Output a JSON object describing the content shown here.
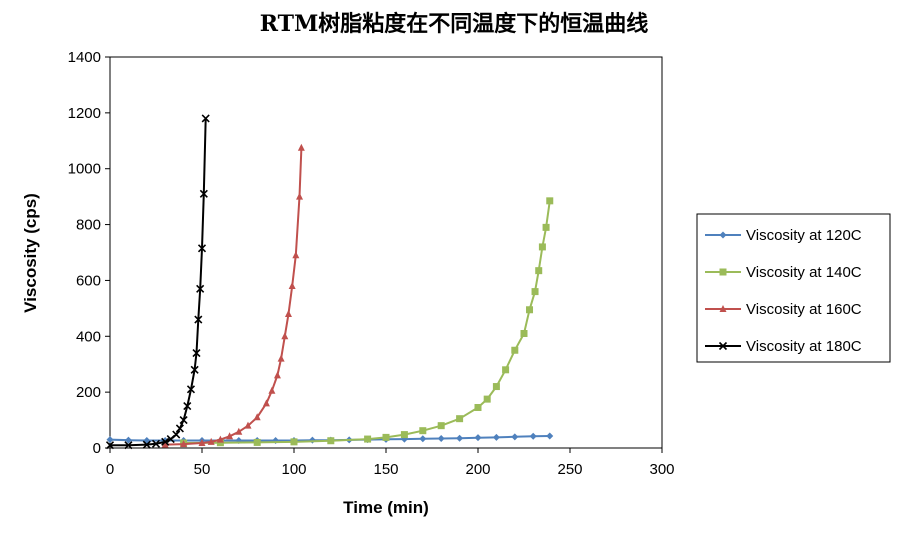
{
  "chart_data": {
    "type": "line",
    "title": "RTM树脂粘度在不同温度下的恒温曲线",
    "xlabel": "Time (min)",
    "ylabel": "Viscosity (cps)",
    "xlim": [
      0,
      300
    ],
    "ylim": [
      0,
      1400
    ],
    "xticks": [
      "0",
      "50",
      "100",
      "150",
      "200",
      "250",
      "300"
    ],
    "yticks": [
      "0",
      "200",
      "400",
      "600",
      "800",
      "1000",
      "1200",
      "1400"
    ],
    "grid": false,
    "legend_position": "right",
    "series": [
      {
        "name": "Viscosity at 120C",
        "color": "#4f81bd",
        "marker": "diamond",
        "x": [
          0,
          10,
          20,
          30,
          40,
          50,
          60,
          70,
          80,
          90,
          100,
          110,
          120,
          130,
          140,
          150,
          160,
          170,
          180,
          190,
          200,
          210,
          220,
          230,
          239
        ],
        "y": [
          30,
          28,
          27,
          27,
          27,
          27,
          27,
          27,
          27,
          27,
          27,
          28,
          28,
          29,
          30,
          31,
          32,
          33,
          34,
          35,
          37,
          38,
          40,
          42,
          43
        ]
      },
      {
        "name": "Viscosity at 140C",
        "color": "#9bbb59",
        "marker": "square",
        "x": [
          40,
          60,
          80,
          100,
          120,
          140,
          150,
          160,
          170,
          180,
          190,
          200,
          205,
          210,
          215,
          220,
          225,
          228,
          231,
          233,
          235,
          237,
          239
        ],
        "y": [
          18,
          19,
          20,
          22,
          26,
          32,
          38,
          48,
          62,
          80,
          105,
          145,
          175,
          220,
          280,
          350,
          410,
          495,
          560,
          635,
          720,
          790,
          885
        ]
      },
      {
        "name": "Viscosity at 160C",
        "color": "#c0504d",
        "marker": "triangle",
        "x": [
          30,
          40,
          50,
          55,
          60,
          65,
          70,
          75,
          80,
          85,
          88,
          91,
          93,
          95,
          97,
          99,
          101,
          103,
          104
        ],
        "y": [
          12,
          14,
          18,
          22,
          30,
          42,
          58,
          80,
          110,
          160,
          205,
          260,
          320,
          400,
          480,
          580,
          690,
          900,
          1075
        ]
      },
      {
        "name": "Viscosity at 180C",
        "color": "#000000",
        "marker": "x",
        "x": [
          0,
          10,
          20,
          25,
          30,
          33,
          36,
          38,
          40,
          42,
          44,
          46,
          47,
          48,
          49,
          50,
          51,
          52
        ],
        "y": [
          10,
          10,
          12,
          15,
          22,
          32,
          48,
          70,
          100,
          150,
          210,
          280,
          340,
          460,
          570,
          715,
          910,
          1180
        ]
      }
    ]
  }
}
